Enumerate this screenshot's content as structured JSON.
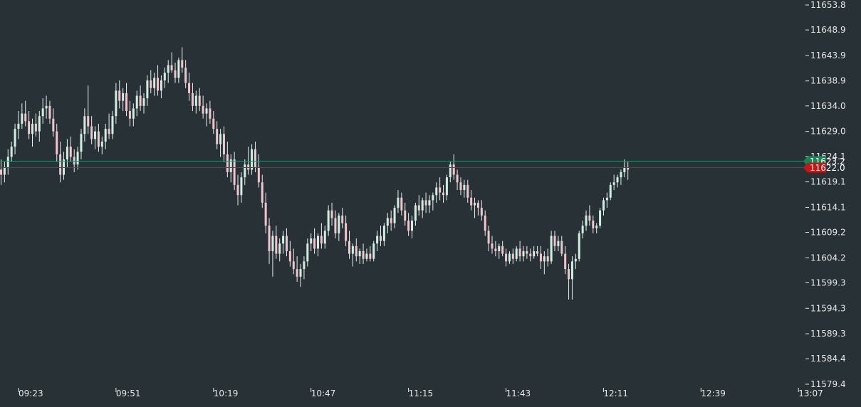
{
  "chart_data": {
    "type": "candlestick",
    "colors": {
      "background": "#283136",
      "up": "#cfeee0",
      "down": "#f2c4cc",
      "wick": "#e8eef0",
      "bid_line": "#2e8a6e",
      "ask_line": "#c21a1a",
      "bid_tag": "#0f8a55",
      "ask_tag": "#c91414",
      "text": "#e6e6e6"
    },
    "ylim": [
      11579.4,
      11653.8
    ],
    "y_ticks": [
      "11653.8",
      "11648.9",
      "11643.9",
      "11638.9",
      "11634.0",
      "11629.0",
      "11624.1",
      "11619.1",
      "11614.1",
      "11609.2",
      "11604.2",
      "11599.3",
      "11594.3",
      "11589.3",
      "11584.4",
      "11579.4"
    ],
    "x_ticks": [
      "09:23",
      "09:51",
      "10:19",
      "10:47",
      "11:15",
      "11:43",
      "12:11",
      "12:39",
      "13:07"
    ],
    "price_lines": [
      {
        "name": "bid",
        "value": 11623.2,
        "label": "11623.2"
      },
      {
        "name": "ask",
        "value": 11622.0,
        "label": "11622.0"
      }
    ],
    "candles_note": "candles: [open, high, low, close], one per minute from 09:18",
    "candles": [
      [
        11621.5,
        11623.5,
        11618.5,
        11620.5
      ],
      [
        11620.5,
        11623.0,
        11619.0,
        11622.0
      ],
      [
        11622.0,
        11625.5,
        11620.5,
        11624.0
      ],
      [
        11624.0,
        11627.0,
        11623.0,
        11626.0
      ],
      [
        11626.0,
        11630.5,
        11624.5,
        11629.5
      ],
      [
        11629.5,
        11633.0,
        11627.5,
        11630.5
      ],
      [
        11630.5,
        11634.5,
        11629.5,
        11632.5
      ],
      [
        11632.5,
        11635.0,
        11630.0,
        11631.0
      ],
      [
        11631.0,
        11633.0,
        11627.5,
        11628.5
      ],
      [
        11628.5,
        11631.5,
        11626.0,
        11630.5
      ],
      [
        11630.5,
        11632.5,
        11628.0,
        11629.0
      ],
      [
        11629.0,
        11633.0,
        11627.0,
        11632.0
      ],
      [
        11632.0,
        11635.5,
        11630.5,
        11633.5
      ],
      [
        11633.5,
        11636.0,
        11631.5,
        11634.0
      ],
      [
        11634.0,
        11635.0,
        11630.5,
        11631.5
      ],
      [
        11631.5,
        11633.5,
        11628.0,
        11629.0
      ],
      [
        11629.0,
        11630.5,
        11623.0,
        11624.5
      ],
      [
        11624.5,
        11627.0,
        11619.0,
        11620.5
      ],
      [
        11620.5,
        11625.0,
        11619.5,
        11623.5
      ],
      [
        11623.5,
        11627.5,
        11622.0,
        11626.0
      ],
      [
        11626.0,
        11628.0,
        11623.0,
        11624.0
      ],
      [
        11624.0,
        11625.5,
        11621.0,
        11622.5
      ],
      [
        11622.5,
        11626.0,
        11621.5,
        11625.0
      ],
      [
        11625.0,
        11629.5,
        11623.5,
        11628.5
      ],
      [
        11628.5,
        11633.5,
        11627.0,
        11632.0
      ],
      [
        11632.0,
        11638.0,
        11628.5,
        11630.0
      ],
      [
        11630.0,
        11632.0,
        11626.5,
        11627.5
      ],
      [
        11627.5,
        11630.0,
        11625.5,
        11629.0
      ],
      [
        11629.0,
        11630.5,
        11625.0,
        11626.0
      ],
      [
        11626.0,
        11628.0,
        11624.5,
        11627.0
      ],
      [
        11627.0,
        11630.5,
        11625.5,
        11629.5
      ],
      [
        11629.5,
        11632.5,
        11627.5,
        11628.5
      ],
      [
        11628.5,
        11633.0,
        11627.5,
        11632.0
      ],
      [
        11632.0,
        11638.5,
        11630.5,
        11637.0
      ],
      [
        11637.0,
        11639.0,
        11633.5,
        11635.0
      ],
      [
        11635.0,
        11637.5,
        11633.0,
        11636.5
      ],
      [
        11636.5,
        11638.5,
        11632.0,
        11633.0
      ],
      [
        11633.0,
        11635.0,
        11630.0,
        11631.5
      ],
      [
        11631.5,
        11634.5,
        11630.0,
        11633.5
      ],
      [
        11633.5,
        11637.0,
        11632.0,
        11636.0
      ],
      [
        11636.0,
        11638.0,
        11633.0,
        11634.0
      ],
      [
        11634.0,
        11636.5,
        11632.5,
        11635.5
      ],
      [
        11635.5,
        11640.0,
        11634.0,
        11639.0
      ],
      [
        11639.0,
        11641.0,
        11636.5,
        11637.5
      ],
      [
        11637.5,
        11640.5,
        11636.0,
        11639.5
      ],
      [
        11639.5,
        11642.0,
        11636.0,
        11637.0
      ],
      [
        11637.0,
        11640.0,
        11635.5,
        11639.0
      ],
      [
        11639.0,
        11641.5,
        11637.5,
        11640.5
      ],
      [
        11640.5,
        11643.0,
        11638.5,
        11642.0
      ],
      [
        11642.0,
        11644.5,
        11640.5,
        11641.0
      ],
      [
        11641.0,
        11642.5,
        11638.5,
        11639.5
      ],
      [
        11639.5,
        11643.5,
        11638.5,
        11643.0
      ],
      [
        11643.0,
        11645.5,
        11640.5,
        11641.5
      ],
      [
        11641.5,
        11643.0,
        11637.5,
        11638.5
      ],
      [
        11638.5,
        11640.5,
        11635.0,
        11636.5
      ],
      [
        11636.5,
        11638.5,
        11633.0,
        11634.0
      ],
      [
        11634.0,
        11637.0,
        11632.5,
        11636.0
      ],
      [
        11636.0,
        11637.5,
        11633.0,
        11634.0
      ],
      [
        11634.0,
        11636.0,
        11631.5,
        11632.5
      ],
      [
        11632.5,
        11634.5,
        11630.0,
        11633.5
      ],
      [
        11633.5,
        11635.0,
        11630.5,
        11631.5
      ],
      [
        11631.5,
        11633.0,
        11628.5,
        11629.5
      ],
      [
        11629.5,
        11631.0,
        11625.5,
        11626.5
      ],
      [
        11626.5,
        11629.5,
        11624.0,
        11628.5
      ],
      [
        11628.5,
        11630.0,
        11623.0,
        11624.5
      ],
      [
        11624.5,
        11627.0,
        11620.0,
        11621.0
      ],
      [
        11621.0,
        11624.5,
        11619.0,
        11623.5
      ],
      [
        11623.5,
        11625.0,
        11617.5,
        11618.5
      ],
      [
        11618.5,
        11620.5,
        11614.5,
        11616.5
      ],
      [
        11616.5,
        11621.0,
        11615.0,
        11620.0
      ],
      [
        11620.0,
        11623.5,
        11618.5,
        11622.5
      ],
      [
        11622.5,
        11626.0,
        11620.5,
        11621.5
      ],
      [
        11621.5,
        11626.5,
        11620.5,
        11625.5
      ],
      [
        11625.5,
        11627.0,
        11621.0,
        11622.0
      ],
      [
        11622.0,
        11624.5,
        11618.0,
        11619.0
      ],
      [
        11619.0,
        11620.5,
        11614.0,
        11615.0
      ],
      [
        11615.0,
        11617.0,
        11609.0,
        11610.5
      ],
      [
        11610.5,
        11612.0,
        11603.0,
        11605.5
      ],
      [
        11605.5,
        11609.5,
        11600.5,
        11608.5
      ],
      [
        11608.5,
        11610.5,
        11604.0,
        11605.0
      ],
      [
        11605.0,
        11608.0,
        11603.5,
        11607.0
      ],
      [
        11607.0,
        11609.5,
        11605.0,
        11608.5
      ],
      [
        11608.5,
        11610.0,
        11604.5,
        11605.5
      ],
      [
        11605.5,
        11607.5,
        11602.5,
        11603.5
      ],
      [
        11603.5,
        11606.0,
        11601.0,
        11602.0
      ],
      [
        11602.0,
        11604.5,
        11599.5,
        11600.5
      ],
      [
        11600.5,
        11603.0,
        11598.5,
        11602.0
      ],
      [
        11602.0,
        11604.5,
        11600.0,
        11603.5
      ],
      [
        11603.5,
        11608.0,
        11602.5,
        11607.0
      ],
      [
        11607.0,
        11609.0,
        11605.5,
        11608.0
      ],
      [
        11608.0,
        11610.0,
        11605.0,
        11606.0
      ],
      [
        11606.0,
        11609.0,
        11604.5,
        11608.5
      ],
      [
        11608.5,
        11611.0,
        11606.0,
        11607.0
      ],
      [
        11607.0,
        11610.5,
        11606.0,
        11609.5
      ],
      [
        11609.5,
        11614.5,
        11608.5,
        11613.5
      ],
      [
        11613.5,
        11615.0,
        11610.5,
        11612.0
      ],
      [
        11612.0,
        11613.5,
        11608.0,
        11609.0
      ],
      [
        11609.0,
        11613.0,
        11607.5,
        11612.5
      ],
      [
        11612.5,
        11614.0,
        11610.0,
        11611.0
      ],
      [
        11611.0,
        11612.5,
        11606.5,
        11607.5
      ],
      [
        11607.5,
        11609.5,
        11604.0,
        11605.0
      ],
      [
        11605.0,
        11607.0,
        11602.5,
        11606.5
      ],
      [
        11606.5,
        11608.0,
        11603.5,
        11604.5
      ],
      [
        11604.5,
        11606.0,
        11603.0,
        11605.5
      ],
      [
        11605.5,
        11607.0,
        11603.0,
        11604.0
      ],
      [
        11604.0,
        11606.0,
        11603.5,
        11605.0
      ],
      [
        11605.0,
        11606.5,
        11603.5,
        11604.0
      ],
      [
        11604.0,
        11607.5,
        11603.5,
        11607.0
      ],
      [
        11607.0,
        11609.5,
        11605.5,
        11608.5
      ],
      [
        11608.5,
        11610.5,
        11606.5,
        11607.5
      ],
      [
        11607.5,
        11611.0,
        11606.5,
        11610.5
      ],
      [
        11610.5,
        11613.0,
        11609.0,
        11612.0
      ],
      [
        11612.0,
        11613.5,
        11609.5,
        11611.0
      ],
      [
        11611.0,
        11614.5,
        11610.0,
        11614.0
      ],
      [
        11614.0,
        11617.5,
        11613.0,
        11616.0
      ],
      [
        11616.0,
        11617.0,
        11612.5,
        11613.5
      ],
      [
        11613.5,
        11615.0,
        11610.5,
        11611.5
      ],
      [
        11611.5,
        11613.0,
        11608.5,
        11609.5
      ],
      [
        11609.5,
        11612.5,
        11608.0,
        11611.5
      ],
      [
        11611.5,
        11615.0,
        11610.5,
        11614.5
      ],
      [
        11614.5,
        11616.5,
        11612.5,
        11613.5
      ],
      [
        11613.5,
        11616.0,
        11612.0,
        11615.5
      ],
      [
        11615.5,
        11617.0,
        11613.0,
        11614.5
      ],
      [
        11614.5,
        11616.5,
        11613.0,
        11615.5
      ],
      [
        11615.5,
        11617.0,
        11613.5,
        11616.5
      ],
      [
        11616.5,
        11619.0,
        11615.0,
        11618.0
      ],
      [
        11618.0,
        11620.0,
        11615.5,
        11617.0
      ],
      [
        11617.0,
        11618.5,
        11615.0,
        11616.5
      ],
      [
        11616.5,
        11620.5,
        11615.5,
        11620.0
      ],
      [
        11620.0,
        11623.0,
        11619.0,
        11622.5
      ],
      [
        11622.5,
        11624.5,
        11619.5,
        11620.5
      ],
      [
        11620.5,
        11621.5,
        11617.5,
        11619.0
      ],
      [
        11619.0,
        11620.0,
        11616.5,
        11617.5
      ],
      [
        11617.5,
        11619.5,
        11616.0,
        11618.5
      ],
      [
        11618.5,
        11619.5,
        11615.0,
        11616.0
      ],
      [
        11616.0,
        11617.5,
        11613.5,
        11614.5
      ],
      [
        11614.5,
        11616.0,
        11612.0,
        11615.0
      ],
      [
        11615.0,
        11615.5,
        11612.5,
        11614.0
      ],
      [
        11614.0,
        11615.5,
        11611.5,
        11612.5
      ],
      [
        11612.5,
        11613.5,
        11608.5,
        11609.5
      ],
      [
        11609.5,
        11610.5,
        11605.5,
        11607.0
      ],
      [
        11607.0,
        11608.5,
        11605.0,
        11606.0
      ],
      [
        11606.0,
        11607.5,
        11604.5,
        11605.5
      ],
      [
        11605.5,
        11607.0,
        11604.0,
        11606.5
      ],
      [
        11606.5,
        11607.5,
        11604.5,
        11605.0
      ],
      [
        11605.0,
        11606.0,
        11602.5,
        11603.5
      ],
      [
        11603.5,
        11605.5,
        11603.0,
        11605.0
      ],
      [
        11605.0,
        11606.0,
        11603.0,
        11604.0
      ],
      [
        11604.0,
        11606.5,
        11603.5,
        11606.0
      ],
      [
        11606.0,
        11607.5,
        11603.5,
        11604.5
      ],
      [
        11604.5,
        11606.5,
        11603.5,
        11605.5
      ],
      [
        11605.5,
        11606.5,
        11604.0,
        11605.0
      ],
      [
        11605.0,
        11606.0,
        11603.5,
        11604.5
      ],
      [
        11604.5,
        11606.5,
        11604.0,
        11605.5
      ],
      [
        11605.5,
        11606.5,
        11604.5,
        11605.0
      ],
      [
        11605.0,
        11606.5,
        11602.0,
        11603.5
      ],
      [
        11603.5,
        11605.5,
        11601.0,
        11604.5
      ],
      [
        11604.5,
        11606.0,
        11602.5,
        11603.5
      ],
      [
        11603.5,
        11609.5,
        11603.0,
        11608.5
      ],
      [
        11608.5,
        11609.5,
        11605.5,
        11606.5
      ],
      [
        11606.5,
        11608.5,
        11605.5,
        11607.5
      ],
      [
        11607.5,
        11608.5,
        11604.5,
        11605.0
      ],
      [
        11605.0,
        11606.5,
        11601.0,
        11602.0
      ],
      [
        11602.0,
        11603.0,
        11596.0,
        11600.0
      ],
      [
        11600.0,
        11604.5,
        11596.0,
        11603.5
      ],
      [
        11603.5,
        11605.0,
        11602.0,
        11604.0
      ],
      [
        11604.0,
        11609.5,
        11603.5,
        11609.0
      ],
      [
        11609.0,
        11611.5,
        11608.0,
        11610.5
      ],
      [
        11610.5,
        11613.5,
        11609.5,
        11612.5
      ],
      [
        11612.5,
        11614.5,
        11610.5,
        11611.5
      ],
      [
        11611.5,
        11612.5,
        11609.0,
        11610.0
      ],
      [
        11610.0,
        11611.0,
        11609.0,
        11610.5
      ],
      [
        11610.5,
        11614.0,
        11610.0,
        11613.5
      ],
      [
        11613.5,
        11616.0,
        11612.5,
        11615.5
      ],
      [
        11615.5,
        11617.0,
        11614.0,
        11616.0
      ],
      [
        11616.0,
        11619.0,
        11615.5,
        11618.5
      ],
      [
        11618.5,
        11620.5,
        11617.5,
        11619.0
      ],
      [
        11619.0,
        11620.5,
        11618.0,
        11620.0
      ],
      [
        11620.0,
        11621.5,
        11618.5,
        11621.0
      ],
      [
        11621.0,
        11623.5,
        11620.0,
        11622.0
      ],
      [
        11622.0,
        11623.0,
        11619.5,
        11621.5
      ]
    ]
  }
}
